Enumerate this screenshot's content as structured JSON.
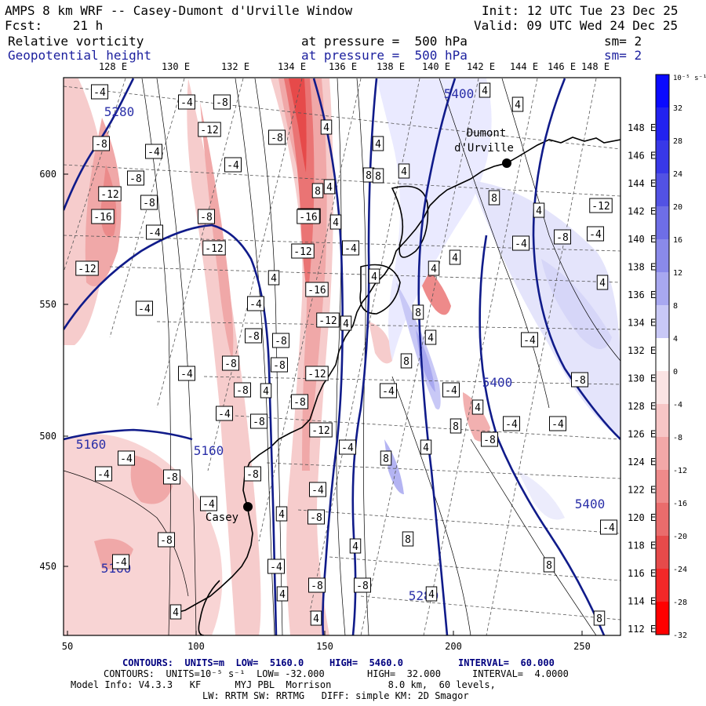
{
  "header": {
    "title": "AMPS 8 km WRF -- Casey-Dumont d'Urville Window",
    "init": "Init: 12 UTC Tue 23 Dec 25",
    "fcst": "Fcst:    21 h",
    "valid": "Valid: 09 UTC Wed 24 Dec 25",
    "field1_name": "Relative vorticity",
    "field1_level": "at pressure =  500 hPa",
    "field1_sm": "sm= 2",
    "field2_name": "Geopotential height",
    "field2_level": "at pressure =  500 hPa",
    "field2_sm": "sm= 2"
  },
  "map": {
    "top_lon_labels": [
      "128 E",
      "130 E",
      "132 E",
      "134 E",
      "136 E",
      "138 E",
      "140 E",
      "142 E",
      "144 E",
      "146 E",
      "148 E"
    ],
    "right_lat_labels": [
      "148 E",
      "146 E",
      "144 E",
      "142 E",
      "140 E",
      "138 E",
      "136 E",
      "134 E",
      "132 E",
      "130 E",
      "128 E",
      "126 E",
      "124 E",
      "122 E",
      "120 E",
      "118 E",
      "116 E",
      "114 E",
      "112 E"
    ],
    "x_ticks": [
      "50",
      "100",
      "150",
      "200",
      "250"
    ],
    "y_ticks": [
      "600",
      "550",
      "500",
      "450"
    ],
    "stations": [
      {
        "name1": "Dumont",
        "name2": "d'Urville"
      },
      {
        "name1": "Casey",
        "name2": ""
      }
    ],
    "height_contour_labels": [
      "5280",
      "5400",
      "5160",
      "5160",
      "5400",
      "5400",
      "5280",
      "5160"
    ],
    "vort_labels": [
      "-4",
      "-8",
      "-4",
      "-4",
      "-8",
      "-12",
      "-8",
      "4",
      "4",
      "-8",
      "-12",
      "-16",
      "-8",
      "-4",
      "4",
      "8",
      "4",
      "4",
      "-16",
      "-8",
      "-12",
      "-4",
      "-4",
      "4",
      "8",
      "4",
      "-12",
      "4",
      "-12",
      "-16",
      "-4",
      "8",
      "4",
      "-16",
      "4",
      "4",
      "-4",
      "-8",
      "-4",
      "-12",
      "4",
      "4",
      "-8",
      "-8",
      "8",
      "8",
      "-8",
      "-12",
      "4",
      "-8",
      "-4",
      "-4",
      "-8",
      "-4",
      "-8",
      "8",
      "-12",
      "4",
      "-4",
      "-4",
      "-8",
      "-4",
      "8",
      "-4",
      "8",
      "-8",
      "4",
      "-8",
      "-4",
      "-8",
      "-4",
      "4",
      "4",
      "-8",
      "8",
      "-4",
      "-8",
      "-4",
      "-12",
      "4",
      "-4",
      "-8",
      "-4",
      "-4",
      "4",
      "8",
      "8",
      "-4",
      "-4",
      "4",
      "-8",
      "-8",
      "4",
      "4",
      "4",
      "-4",
      "-4",
      "4",
      "4"
    ],
    "colorbar_unit": "10⁻⁵ s⁻¹",
    "colorbar_labels": [
      "32",
      "28",
      "24",
      "20",
      "16",
      "12",
      "8",
      "4",
      "0",
      "-4",
      "-8",
      "-12",
      "-16",
      "-20",
      "-24",
      "-28",
      "-32"
    ],
    "colorbar_colors": [
      "#0a0aff",
      "#2222f0",
      "#3838e8",
      "#5252e4",
      "#6e6ee6",
      "#8a8aea",
      "#a8a8f0",
      "#c8c8f6",
      "#ffffff",
      "#fbe4e4",
      "#f7c6c6",
      "#f2a8a8",
      "#ee8a8a",
      "#ea6c6c",
      "#e64a4a",
      "#f22828",
      "#ff0000"
    ]
  },
  "footer": {
    "line1_a": "CONTOURS:  UNITS=m  LOW=  5160.0",
    "line1_b": "HIGH=  5460.0",
    "line1_c": "INTERVAL=  60.000",
    "line2_a": "CONTOURS:  UNITS=10⁻⁵ s⁻¹  LOW= -32.000",
    "line2_b": "HIGH=  32.000",
    "line2_c": "INTERVAL=  4.0000",
    "line3": "Model Info: V4.3.3   KF      MYJ PBL  Morrison          8.0 km,  60 levels,",
    "line4": "LW: RRTM SW: RRTMG   DIFF: simple KM: 2D Smagor"
  }
}
